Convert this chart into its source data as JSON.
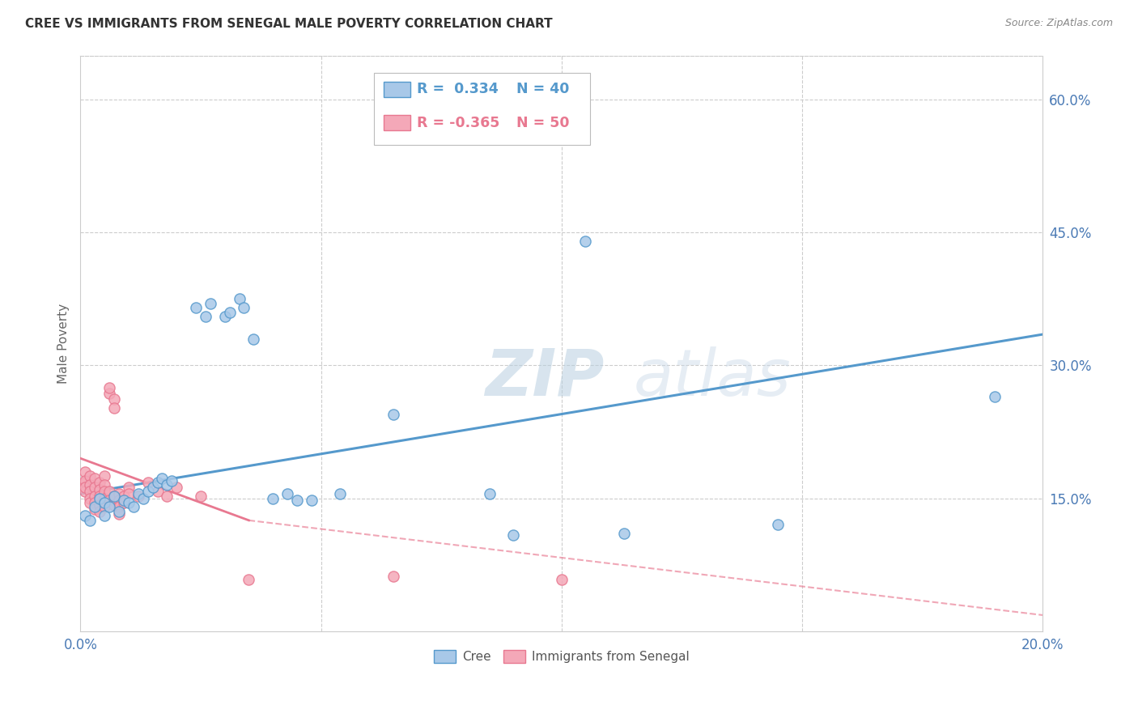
{
  "title": "CREE VS IMMIGRANTS FROM SENEGAL MALE POVERTY CORRELATION CHART",
  "source": "Source: ZipAtlas.com",
  "ylabel": "Male Poverty",
  "yticks": [
    "60.0%",
    "45.0%",
    "30.0%",
    "15.0%"
  ],
  "ytick_vals": [
    0.6,
    0.45,
    0.3,
    0.15
  ],
  "xlim": [
    0.0,
    0.2
  ],
  "ylim": [
    0.0,
    0.65
  ],
  "cree_R": 0.334,
  "cree_N": 40,
  "senegal_R": -0.365,
  "senegal_N": 50,
  "cree_color": "#a8c8e8",
  "senegal_color": "#f4a8b8",
  "cree_line_color": "#5599cc",
  "senegal_line_color": "#e87890",
  "watermark": "ZIPatlas",
  "cree_line": [
    0.0,
    0.155,
    0.2,
    0.335
  ],
  "senegal_line_solid": [
    0.0,
    0.195,
    0.035,
    0.125
  ],
  "senegal_line_dash": [
    0.035,
    0.125,
    0.2,
    0.018
  ],
  "cree_points": [
    [
      0.001,
      0.13
    ],
    [
      0.002,
      0.125
    ],
    [
      0.003,
      0.14
    ],
    [
      0.004,
      0.15
    ],
    [
      0.005,
      0.145
    ],
    [
      0.005,
      0.13
    ],
    [
      0.006,
      0.14
    ],
    [
      0.007,
      0.152
    ],
    [
      0.008,
      0.135
    ],
    [
      0.009,
      0.148
    ],
    [
      0.01,
      0.145
    ],
    [
      0.011,
      0.14
    ],
    [
      0.012,
      0.155
    ],
    [
      0.013,
      0.15
    ],
    [
      0.014,
      0.158
    ],
    [
      0.015,
      0.162
    ],
    [
      0.016,
      0.168
    ],
    [
      0.017,
      0.172
    ],
    [
      0.018,
      0.165
    ],
    [
      0.019,
      0.17
    ],
    [
      0.024,
      0.365
    ],
    [
      0.026,
      0.355
    ],
    [
      0.027,
      0.37
    ],
    [
      0.03,
      0.355
    ],
    [
      0.031,
      0.36
    ],
    [
      0.033,
      0.375
    ],
    [
      0.034,
      0.365
    ],
    [
      0.036,
      0.33
    ],
    [
      0.04,
      0.15
    ],
    [
      0.043,
      0.155
    ],
    [
      0.045,
      0.148
    ],
    [
      0.048,
      0.148
    ],
    [
      0.054,
      0.155
    ],
    [
      0.065,
      0.245
    ],
    [
      0.085,
      0.155
    ],
    [
      0.09,
      0.108
    ],
    [
      0.105,
      0.44
    ],
    [
      0.113,
      0.11
    ],
    [
      0.145,
      0.12
    ],
    [
      0.19,
      0.265
    ]
  ],
  "senegal_points": [
    [
      0.001,
      0.18
    ],
    [
      0.001,
      0.168
    ],
    [
      0.001,
      0.158
    ],
    [
      0.001,
      0.17
    ],
    [
      0.001,
      0.162
    ],
    [
      0.002,
      0.175
    ],
    [
      0.002,
      0.165
    ],
    [
      0.002,
      0.158
    ],
    [
      0.002,
      0.15
    ],
    [
      0.002,
      0.145
    ],
    [
      0.003,
      0.172
    ],
    [
      0.003,
      0.162
    ],
    [
      0.003,
      0.152
    ],
    [
      0.003,
      0.145
    ],
    [
      0.003,
      0.138
    ],
    [
      0.004,
      0.168
    ],
    [
      0.004,
      0.16
    ],
    [
      0.004,
      0.152
    ],
    [
      0.004,
      0.142
    ],
    [
      0.004,
      0.135
    ],
    [
      0.005,
      0.175
    ],
    [
      0.005,
      0.165
    ],
    [
      0.005,
      0.158
    ],
    [
      0.005,
      0.15
    ],
    [
      0.005,
      0.14
    ],
    [
      0.006,
      0.268
    ],
    [
      0.006,
      0.275
    ],
    [
      0.006,
      0.158
    ],
    [
      0.006,
      0.148
    ],
    [
      0.007,
      0.262
    ],
    [
      0.007,
      0.252
    ],
    [
      0.007,
      0.152
    ],
    [
      0.007,
      0.142
    ],
    [
      0.008,
      0.155
    ],
    [
      0.008,
      0.148
    ],
    [
      0.008,
      0.14
    ],
    [
      0.008,
      0.132
    ],
    [
      0.009,
      0.152
    ],
    [
      0.009,
      0.145
    ],
    [
      0.01,
      0.162
    ],
    [
      0.01,
      0.155
    ],
    [
      0.012,
      0.152
    ],
    [
      0.014,
      0.168
    ],
    [
      0.016,
      0.158
    ],
    [
      0.018,
      0.152
    ],
    [
      0.02,
      0.162
    ],
    [
      0.025,
      0.152
    ],
    [
      0.035,
      0.058
    ],
    [
      0.065,
      0.062
    ],
    [
      0.1,
      0.058
    ]
  ]
}
